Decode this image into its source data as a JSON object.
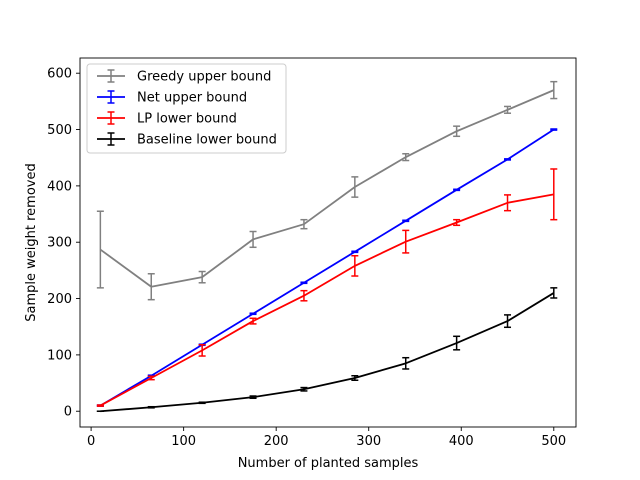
{
  "chart_data": {
    "type": "line",
    "title": "",
    "xlabel": "Number of planted samples",
    "ylabel": "Sample weight removed",
    "xlim": [
      -12,
      524
    ],
    "ylim": [
      -28,
      627
    ],
    "xticks": [
      0,
      100,
      200,
      300,
      400,
      500
    ],
    "yticks": [
      0,
      100,
      200,
      300,
      400,
      500,
      600
    ],
    "grid": false,
    "legend_position": "top-left",
    "series": [
      {
        "name": "Greedy upper bound",
        "color": "#808080",
        "x": [
          10,
          65,
          120,
          175,
          230,
          285,
          340,
          395,
          450,
          500
        ],
        "y": [
          287,
          221,
          238,
          305,
          332,
          398,
          451,
          497,
          535,
          570
        ],
        "err": [
          68,
          23,
          10,
          14,
          8,
          18,
          6,
          9,
          6,
          15
        ]
      },
      {
        "name": "Net upper bound",
        "color": "#0000ff",
        "x": [
          10,
          65,
          120,
          175,
          230,
          285,
          340,
          395,
          450,
          500
        ],
        "y": [
          10,
          63,
          118,
          173,
          228,
          283,
          338,
          393,
          447,
          500
        ],
        "err": [
          1,
          1,
          1,
          1,
          1,
          1,
          1,
          1,
          1,
          1
        ]
      },
      {
        "name": "LP lower bound",
        "color": "#ff0000",
        "x": [
          10,
          65,
          120,
          175,
          230,
          285,
          340,
          395,
          450,
          500
        ],
        "y": [
          10,
          59,
          108,
          160,
          205,
          258,
          301,
          335,
          370,
          385
        ],
        "err": [
          1,
          3,
          10,
          5,
          9,
          18,
          20,
          5,
          14,
          45
        ]
      },
      {
        "name": "Baseline lower bound",
        "color": "#000000",
        "x": [
          10,
          65,
          120,
          175,
          230,
          285,
          340,
          395,
          450,
          500
        ],
        "y": [
          0,
          7,
          15,
          25,
          39,
          59,
          85,
          121,
          160,
          210
        ],
        "err": [
          0,
          1,
          1,
          2,
          3,
          4,
          10,
          12,
          11,
          9
        ]
      }
    ]
  }
}
